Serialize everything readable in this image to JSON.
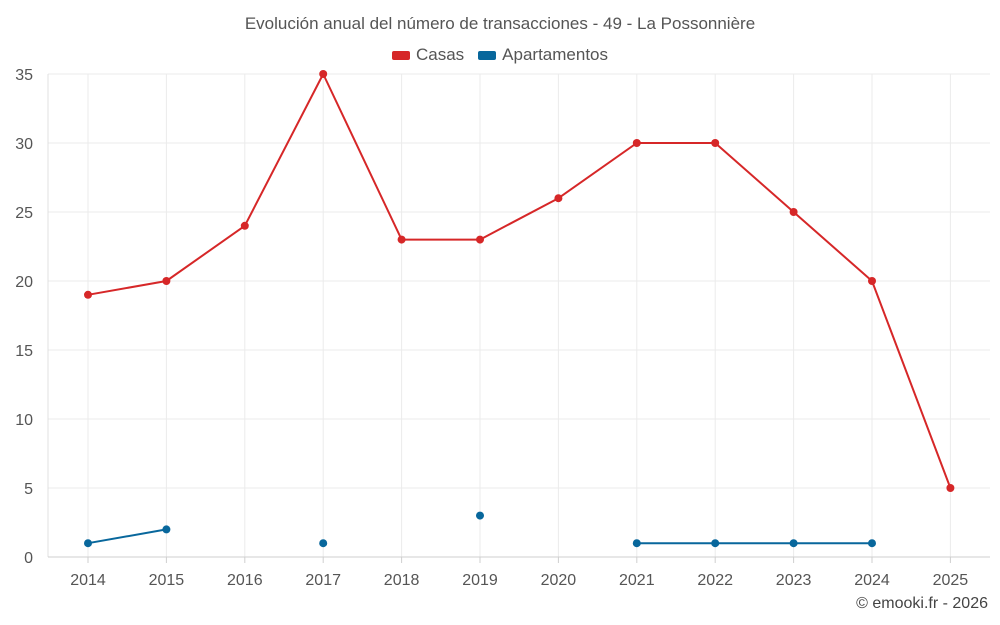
{
  "chart_data": {
    "type": "line",
    "title": "Evolución anual del número de transacciones - 49 - La Possonnière",
    "categories": [
      "2014",
      "2015",
      "2016",
      "2017",
      "2018",
      "2019",
      "2020",
      "2021",
      "2022",
      "2023",
      "2024",
      "2025"
    ],
    "series": [
      {
        "name": "Casas",
        "color": "#d62728",
        "values": [
          19,
          20,
          24,
          35,
          23,
          23,
          26,
          30,
          30,
          25,
          20,
          5
        ]
      },
      {
        "name": "Apartamentos",
        "color": "#08679c",
        "values": [
          1,
          2,
          null,
          1,
          null,
          3,
          null,
          1,
          1,
          1,
          1,
          null
        ]
      }
    ],
    "yticks": [
      "0",
      "5",
      "10",
      "15",
      "20",
      "25",
      "30",
      "35"
    ],
    "ylim": [
      0,
      35
    ],
    "grid": true,
    "legend_position": "top-center"
  },
  "credit": "© emooki.fr - 2026"
}
